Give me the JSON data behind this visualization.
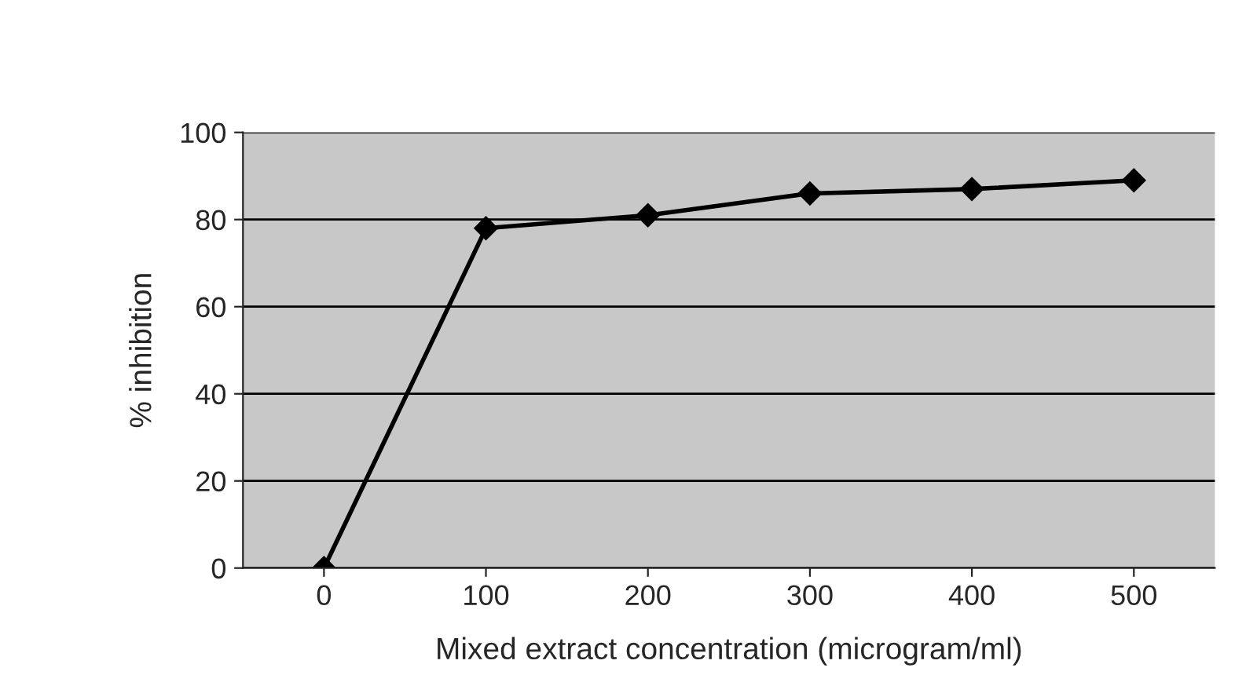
{
  "chart_data": {
    "type": "line",
    "xlabel": "Mixed extract concentration (microgram/ml)",
    "ylabel": "% inhibition",
    "categories": [
      "0",
      "100",
      "200",
      "300",
      "400",
      "500"
    ],
    "series": [
      {
        "color": "#000000",
        "values": [
          0,
          78,
          81,
          86,
          87,
          89
        ]
      }
    ],
    "ylim": [
      0,
      100
    ],
    "yticks": [
      0,
      20,
      40,
      60,
      80,
      100
    ],
    "grid": "y",
    "marker": "diamond",
    "line_style": "solid",
    "legend": false
  }
}
